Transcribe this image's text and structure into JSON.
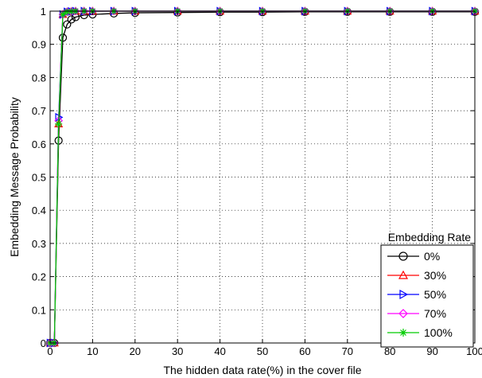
{
  "chart_data": {
    "type": "line",
    "title": "",
    "xlabel": "The hidden data rate(%) in the cover file",
    "ylabel": "Embedding Message Probability",
    "xlim": [
      0,
      100
    ],
    "ylim": [
      0,
      1
    ],
    "x_ticks": [
      "0",
      "10",
      "20",
      "30",
      "40",
      "50",
      "60",
      "70",
      "80",
      "90",
      "100"
    ],
    "y_ticks": [
      "0",
      "0.1",
      "0.2",
      "0.3",
      "0.4",
      "0.5",
      "0.6",
      "0.7",
      "0.8",
      "0.9",
      "1"
    ],
    "grid": true,
    "legend_title": "Embedding Rate",
    "legend_position": "bottom-right",
    "series": [
      {
        "name": "0%",
        "color": "#000000",
        "marker": "circle",
        "x": [
          0,
          1,
          2,
          3,
          4,
          5,
          6,
          8,
          10,
          15,
          20,
          30,
          40,
          50,
          60,
          70,
          80,
          90,
          100
        ],
        "y": [
          0,
          0,
          0.61,
          0.92,
          0.96,
          0.975,
          0.982,
          0.988,
          0.99,
          0.993,
          0.995,
          0.996,
          0.997,
          0.997,
          0.998,
          0.998,
          0.998,
          0.998,
          0.998
        ]
      },
      {
        "name": "30%",
        "color": "#ff0000",
        "marker": "triangle-up",
        "x": [
          0,
          1,
          2,
          3,
          4,
          5,
          6,
          8,
          10,
          15,
          20,
          30,
          40,
          50,
          60,
          70,
          80,
          90,
          100
        ],
        "y": [
          0,
          0,
          0.66,
          0.99,
          0.998,
          0.999,
          1,
          1,
          1,
          1,
          1,
          1,
          1,
          1,
          1,
          1,
          1,
          1,
          1
        ]
      },
      {
        "name": "50%",
        "color": "#0000ff",
        "marker": "triangle-right",
        "x": [
          0,
          1,
          2,
          3,
          4,
          5,
          6,
          8,
          10,
          15,
          20,
          30,
          40,
          50,
          60,
          70,
          80,
          90,
          100
        ],
        "y": [
          0,
          0,
          0.68,
          0.99,
          0.998,
          0.999,
          1,
          1,
          1,
          1,
          1,
          1,
          1,
          1,
          1,
          1,
          1,
          1,
          1
        ]
      },
      {
        "name": "70%",
        "color": "#ff00ff",
        "marker": "diamond",
        "x": [
          0,
          1,
          2,
          3,
          4,
          5,
          6,
          8,
          10,
          15,
          20,
          30,
          40,
          50,
          60,
          70,
          80,
          90,
          100
        ],
        "y": [
          0,
          0,
          0.67,
          0.99,
          0.998,
          0.999,
          1,
          1,
          1,
          1,
          1,
          1,
          1,
          1,
          1,
          1,
          1,
          1,
          1
        ]
      },
      {
        "name": "100%",
        "color": "#00cc00",
        "marker": "asterisk",
        "x": [
          0,
          1,
          2,
          3,
          4,
          5,
          6,
          8,
          10,
          15,
          20,
          30,
          40,
          50,
          60,
          70,
          80,
          90,
          100
        ],
        "y": [
          0,
          0,
          0.66,
          0.99,
          0.998,
          0.999,
          1,
          1,
          1,
          1,
          1,
          1,
          1,
          1,
          1,
          1,
          1,
          1,
          1
        ]
      }
    ]
  }
}
